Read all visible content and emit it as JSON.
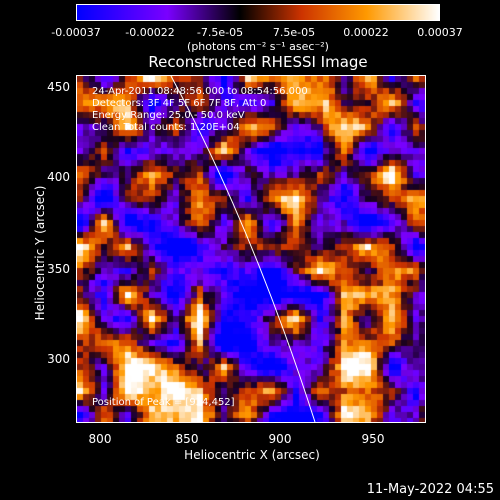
{
  "colorbar": {
    "ticks": [
      "-0.00037",
      "-0.00022",
      "-7.5e-05",
      "7.5e-05",
      "0.00022",
      "0.00037"
    ],
    "units": "(photons cm⁻² s⁻¹ asec⁻²)",
    "colors": [
      "#0000ff",
      "#7a00ff",
      "#000000",
      "#cc3300",
      "#ff9900",
      "#ffffff"
    ]
  },
  "title": "Reconstructed RHESSI Image",
  "info": {
    "line1": "24-Apr-2011 08:48:56.000 to 08:54:56.000",
    "line2": "Detectors: 3F 4F 5F 6F 7F 8F, Att 0",
    "line3": "Energy Range: 25.0 - 50.0 keV",
    "line4": "Clean     Total counts: 1.20E+04",
    "peak": "Position of Peak = [934,452]"
  },
  "axes": {
    "xlabel": "Heliocentric X (arcsec)",
    "ylabel": "Heliocentric Y (arcsec)",
    "xticks": [
      "800",
      "850",
      "900",
      "950"
    ],
    "yticks": [
      "450",
      "400",
      "350",
      "300"
    ]
  },
  "footer": "11-May-2022 04:55"
}
